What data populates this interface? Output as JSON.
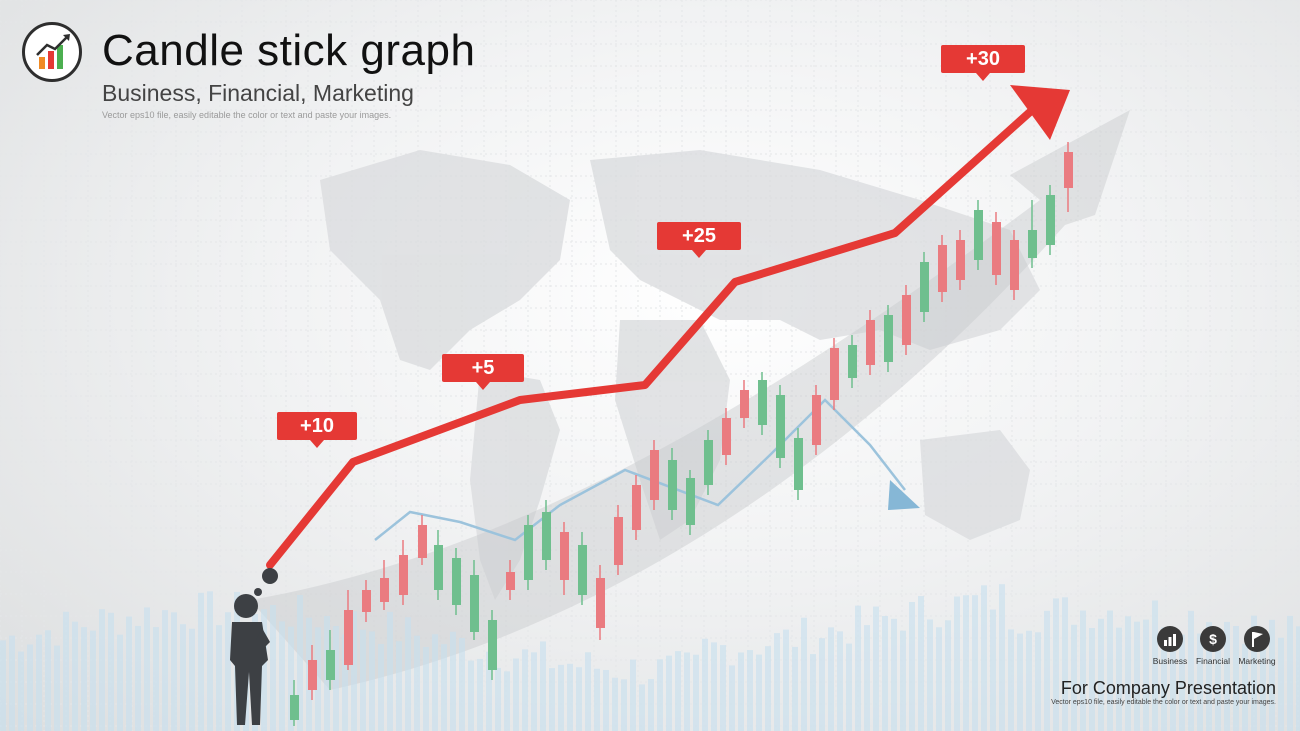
{
  "header": {
    "title": "Candle stick graph",
    "subtitle": "Business, Financial, Marketing",
    "note": "Vector eps10 file, easily editable the color or text and paste your images."
  },
  "callouts": [
    {
      "label": "+10"
    },
    {
      "label": "+5"
    },
    {
      "label": "+25"
    },
    {
      "label": "+30"
    }
  ],
  "categories": [
    {
      "icon": "bar-chart-icon",
      "label": "Business"
    },
    {
      "icon": "dollar-icon",
      "label": "Financial",
      "glyph": "$"
    },
    {
      "icon": "flag-icon",
      "label": "Marketing"
    }
  ],
  "footer": {
    "title": "For Company Presentation",
    "note": "Vector eps10 file, easily editable the color or text and paste your images."
  },
  "colors": {
    "accent_red": "#e53935",
    "candle_up": "#6fbf8e",
    "candle_down": "#ea7b80",
    "trend_blue": "#86b7d6",
    "bars_blue": "#c6e0ef"
  }
}
